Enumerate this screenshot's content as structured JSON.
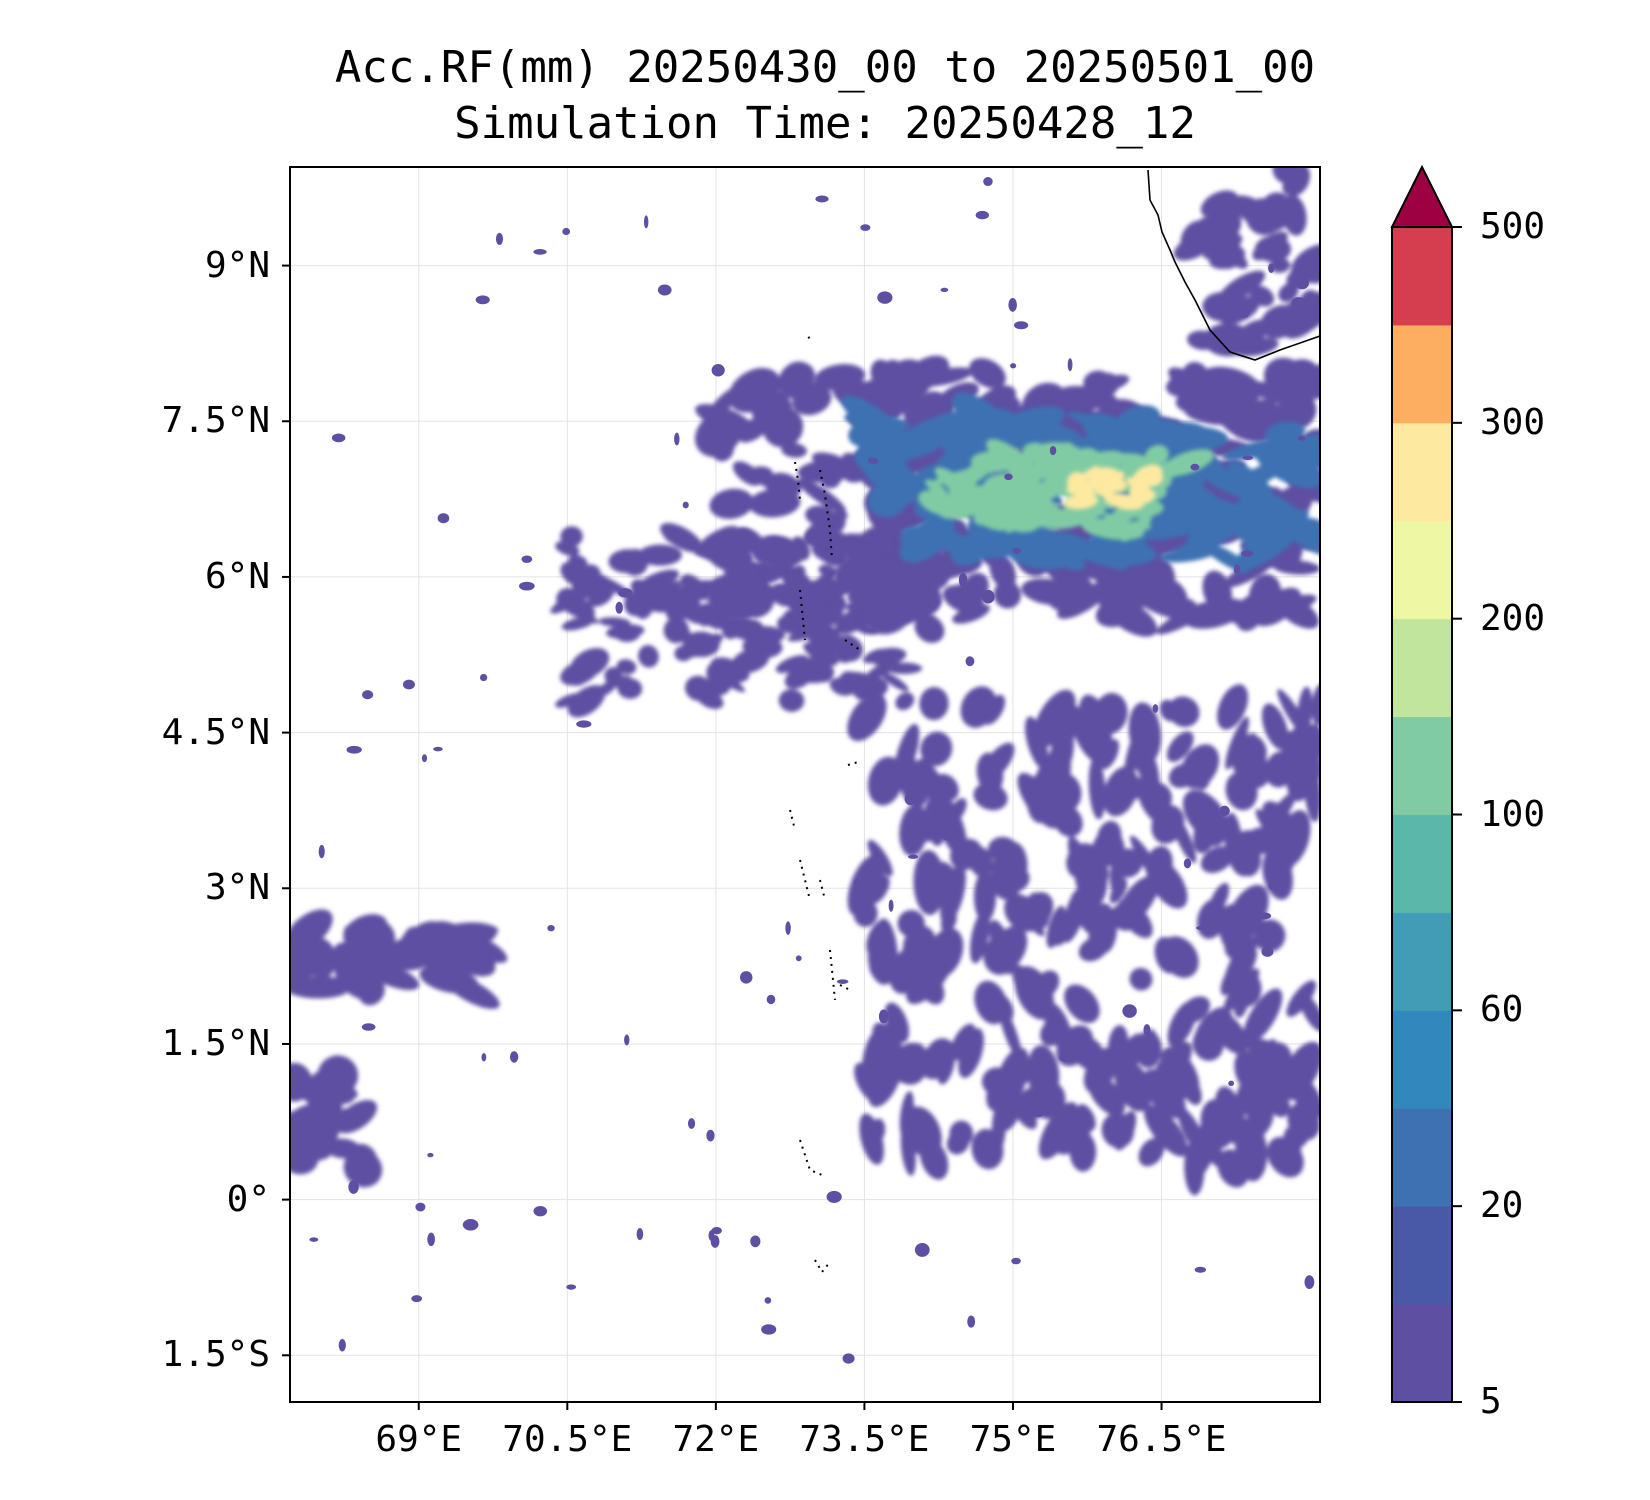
{
  "title": {
    "line1": "Acc.RF(mm) 20250430_00 to 20250501_00",
    "line2": "Simulation Time: 20250428_12"
  },
  "map": {
    "lon_range": [
      67.7,
      78.1
    ],
    "lat_range": [
      -1.95,
      9.95
    ],
    "lat_ticks": [
      {
        "value": 9,
        "label": "9°N"
      },
      {
        "value": 7.5,
        "label": "7.5°N"
      },
      {
        "value": 6,
        "label": "6°N"
      },
      {
        "value": 4.5,
        "label": "4.5°N"
      },
      {
        "value": 3,
        "label": "3°N"
      },
      {
        "value": 1.5,
        "label": "1.5°N"
      },
      {
        "value": 0,
        "label": "0°"
      },
      {
        "value": -1.5,
        "label": "1.5°S"
      }
    ],
    "lon_ticks": [
      {
        "value": 69,
        "label": "69°E"
      },
      {
        "value": 70.5,
        "label": "70.5°E"
      },
      {
        "value": 72,
        "label": "72°E"
      },
      {
        "value": 73.5,
        "label": "73.5°E"
      },
      {
        "value": 75,
        "label": "75°E"
      },
      {
        "value": 76.5,
        "label": "76.5°E"
      }
    ],
    "grid": true
  },
  "colorbar": {
    "levels": [
      5,
      10,
      20,
      40,
      60,
      80,
      100,
      150,
      200,
      250,
      300,
      400,
      500
    ],
    "colors": [
      "#5e4fa2",
      "#4a58a8",
      "#3d71b2",
      "#3288bd",
      "#439cb6",
      "#5bb7a9",
      "#80cba4",
      "#c2e59e",
      "#eef7a4",
      "#fde9a0",
      "#fdae61",
      "#d53e4f"
    ],
    "extend_color": "#9e0142",
    "extend": "max",
    "tick_labels": [
      {
        "value": 5,
        "label": "5"
      },
      {
        "value": 20,
        "label": "20"
      },
      {
        "value": 60,
        "label": "60"
      },
      {
        "value": 100,
        "label": "100"
      },
      {
        "value": 200,
        "label": "200"
      },
      {
        "value": 300,
        "label": "300"
      },
      {
        "value": 500,
        "label": "500"
      }
    ]
  },
  "rain_features": [
    {
      "name": "main-rain-band",
      "lon": [
        72.0,
        78.1
      ],
      "lat": [
        5.6,
        8.0
      ],
      "level": 5
    },
    {
      "name": "main-band-20mm",
      "lon": [
        73.5,
        78.1
      ],
      "lat": [
        6.2,
        7.5
      ],
      "level": 20
    },
    {
      "name": "main-band-core",
      "lon": [
        74.2,
        76.8
      ],
      "lat": [
        6.45,
        7.2
      ],
      "level": 100
    },
    {
      "name": "main-band-max",
      "lon": [
        75.6,
        76.4
      ],
      "lat": [
        6.7,
        7.0
      ],
      "level": 250
    },
    {
      "name": "west-central-rain",
      "lon": [
        70.5,
        74.2
      ],
      "lat": [
        4.8,
        6.4
      ],
      "level": 5
    },
    {
      "name": "southeast-rain-streaks",
      "lon": [
        73.5,
        78.1
      ],
      "lat": [
        0.3,
        4.8
      ],
      "level": 5
    },
    {
      "name": "northeast-coastal-rain",
      "lon": [
        76.8,
        78.1
      ],
      "lat": [
        8.2,
        9.95
      ],
      "level": 5
    },
    {
      "name": "west-edge-rain-band",
      "lon": [
        67.7,
        69.7
      ],
      "lat": [
        2.0,
        2.6
      ],
      "level": 5
    },
    {
      "name": "southwest-rain-patch",
      "lon": [
        67.7,
        68.5
      ],
      "lat": [
        0.3,
        1.4
      ],
      "level": 5
    }
  ]
}
